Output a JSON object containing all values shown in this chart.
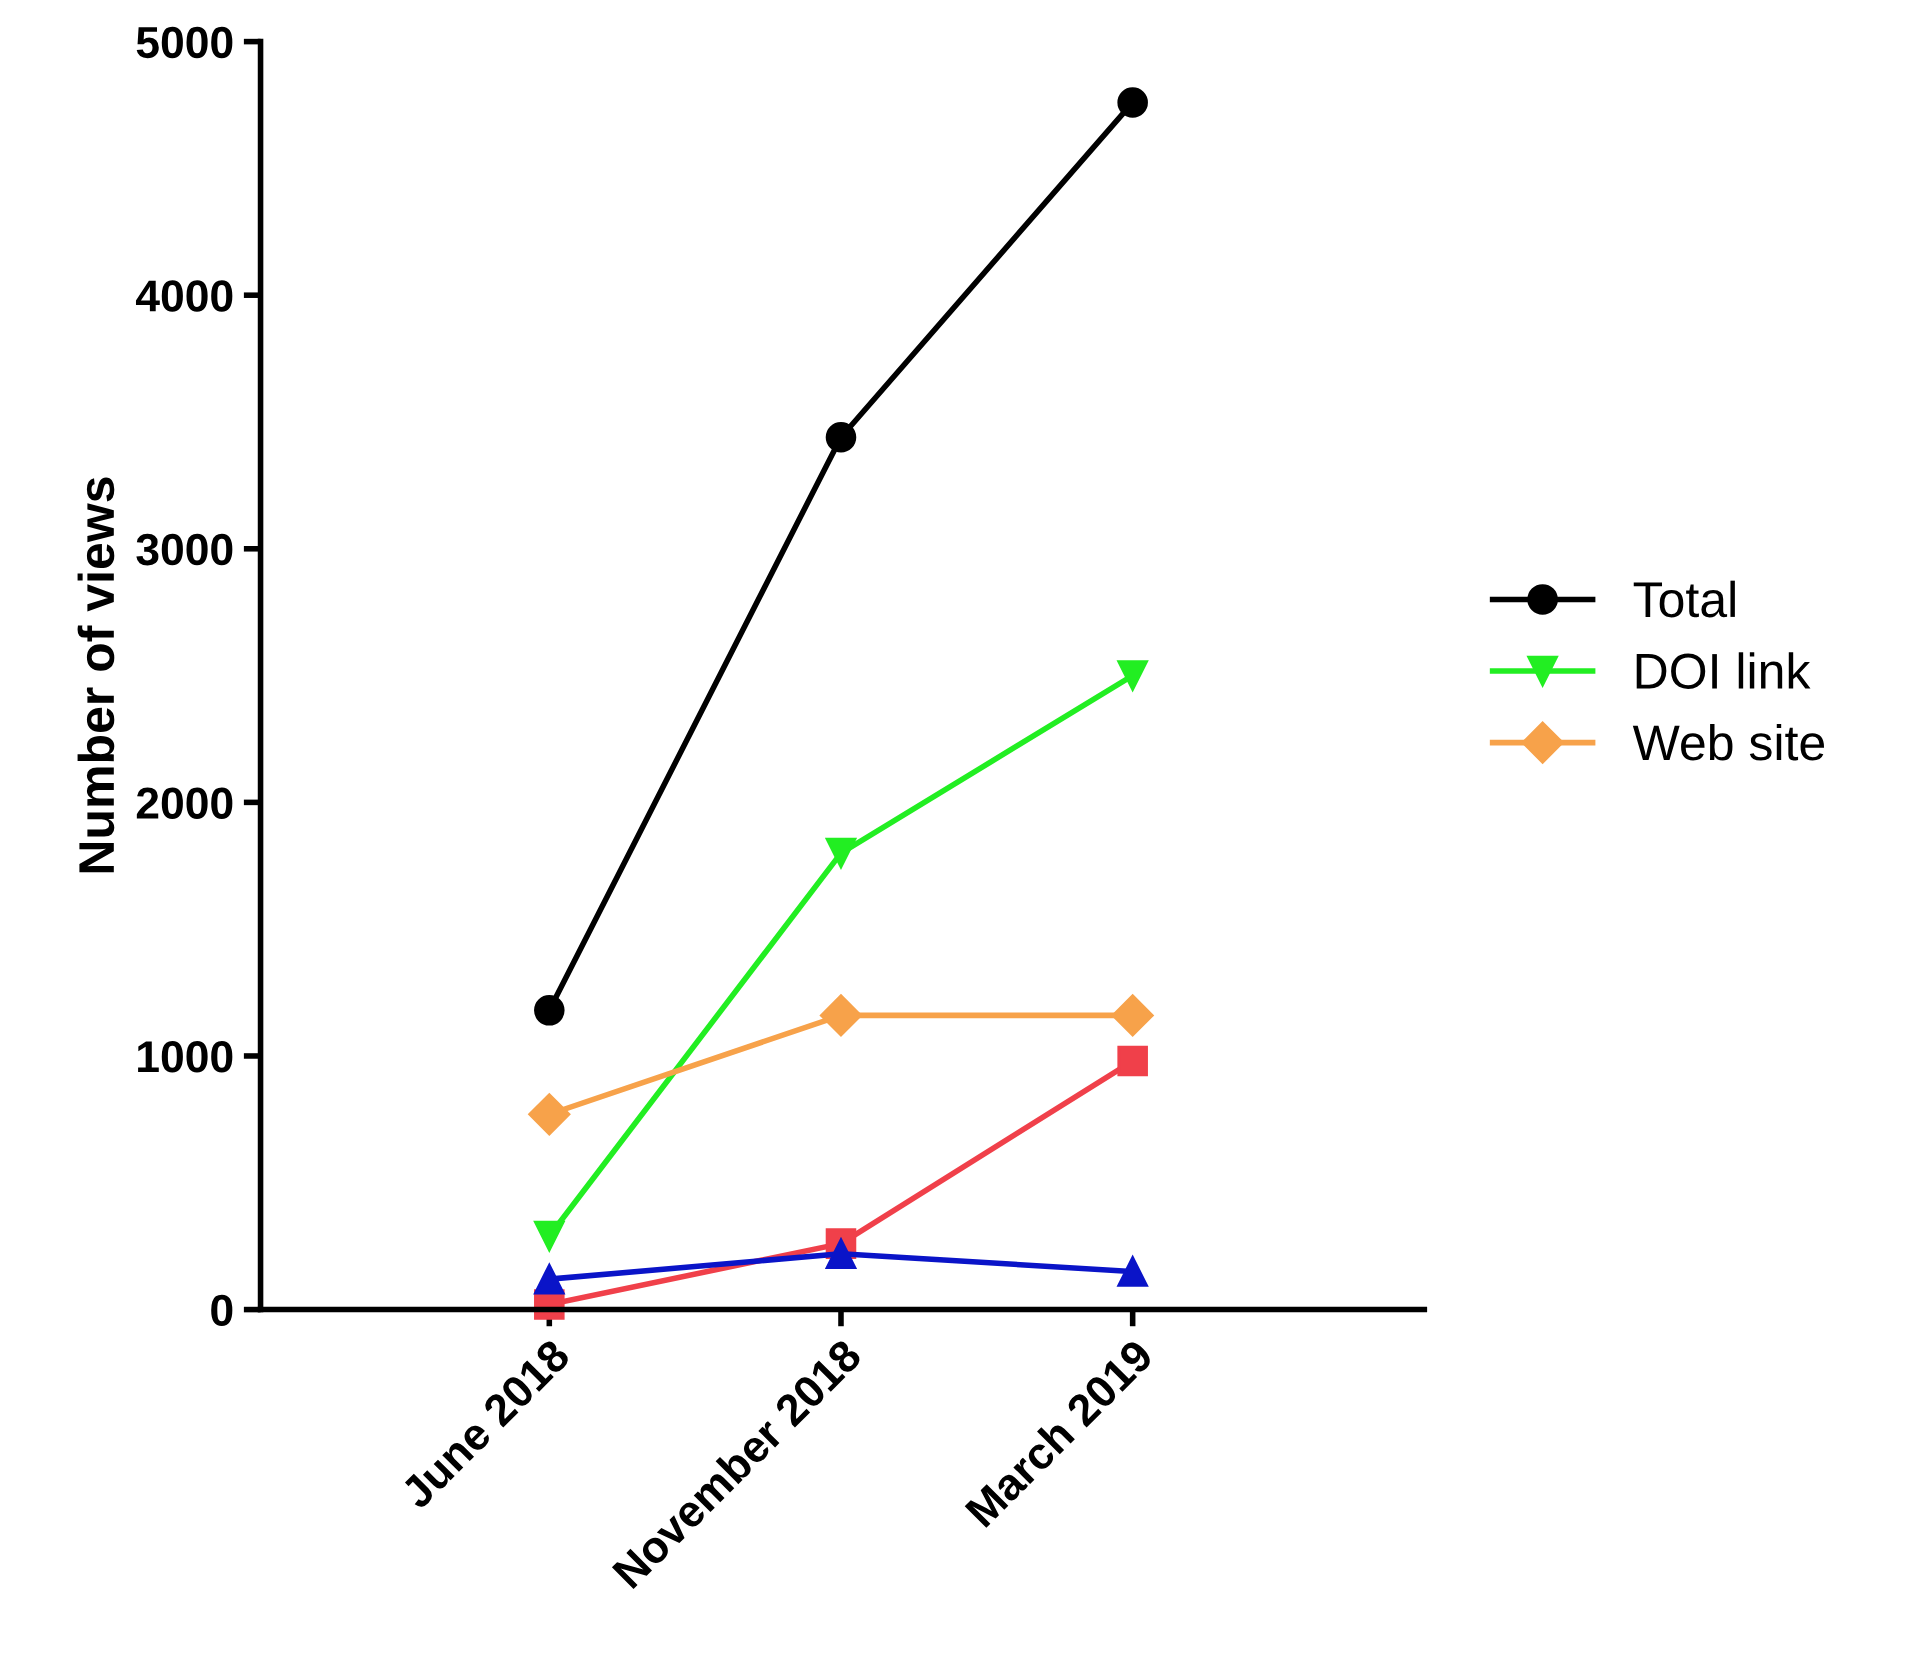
{
  "chart_data": {
    "type": "line",
    "ylabel": "Number of views",
    "categories": [
      "June 2018",
      "November 2018",
      "March 2019"
    ],
    "series": [
      {
        "name": "Total",
        "color": "#000000",
        "marker": "circle",
        "values": [
          1180,
          3440,
          4760
        ]
      },
      {
        "color": "#f0404a",
        "marker": "square",
        "values": [
          20,
          260,
          980
        ]
      },
      {
        "color": "#0a14c8",
        "marker": "triangle",
        "values": [
          120,
          220,
          150
        ]
      },
      {
        "name": "DOI link",
        "color": "#22ee22",
        "marker": "triangle_down",
        "values": [
          290,
          1800,
          2500
        ]
      },
      {
        "name": "Web site",
        "color": "#f7a24a",
        "marker": "diamond",
        "values": [
          770,
          1160,
          1160
        ]
      }
    ],
    "ylim": [
      0,
      5000
    ],
    "yticks": [
      0,
      1000,
      2000,
      3000,
      4000,
      5000
    ],
    "grid": false,
    "legend": "right",
    "line_style": "solid"
  }
}
